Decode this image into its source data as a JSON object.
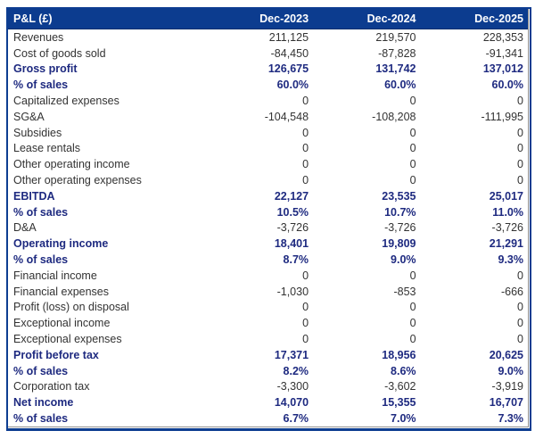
{
  "theme": {
    "header_background": "#0c3c8f",
    "header_text": "#ffffff",
    "emphasis_text": "#1e2a80",
    "body_text": "#333333",
    "outer_border": "#0d3d91",
    "inner_gridline": "#8f8f8f",
    "background": "#ffffff"
  },
  "table": {
    "columns": [
      "P&L (£)",
      "Dec-2023",
      "Dec-2024",
      "Dec-2025"
    ],
    "rows": [
      {
        "label": "Revenues",
        "values": [
          "211,125",
          "219,570",
          "228,353"
        ],
        "bold": false
      },
      {
        "label": "Cost of goods sold",
        "values": [
          "-84,450",
          "-87,828",
          "-91,341"
        ],
        "bold": false
      },
      {
        "label": "Gross profit",
        "values": [
          "126,675",
          "131,742",
          "137,012"
        ],
        "bold": true
      },
      {
        "label": "% of sales",
        "values": [
          "60.0%",
          "60.0%",
          "60.0%"
        ],
        "bold": true
      },
      {
        "label": "Capitalized expenses",
        "values": [
          "0",
          "0",
          "0"
        ],
        "bold": false
      },
      {
        "label": "SG&A",
        "values": [
          "-104,548",
          "-108,208",
          "-111,995"
        ],
        "bold": false
      },
      {
        "label": "Subsidies",
        "values": [
          "0",
          "0",
          "0"
        ],
        "bold": false
      },
      {
        "label": "Lease rentals",
        "values": [
          "0",
          "0",
          "0"
        ],
        "bold": false
      },
      {
        "label": "Other operating income",
        "values": [
          "0",
          "0",
          "0"
        ],
        "bold": false
      },
      {
        "label": "Other operating expenses",
        "values": [
          "0",
          "0",
          "0"
        ],
        "bold": false
      },
      {
        "label": "EBITDA",
        "values": [
          "22,127",
          "23,535",
          "25,017"
        ],
        "bold": true
      },
      {
        "label": "% of sales",
        "values": [
          "10.5%",
          "10.7%",
          "11.0%"
        ],
        "bold": true
      },
      {
        "label": "D&A",
        "values": [
          "-3,726",
          "-3,726",
          "-3,726"
        ],
        "bold": false
      },
      {
        "label": "Operating income",
        "values": [
          "18,401",
          "19,809",
          "21,291"
        ],
        "bold": true
      },
      {
        "label": "% of sales",
        "values": [
          "8.7%",
          "9.0%",
          "9.3%"
        ],
        "bold": true
      },
      {
        "label": "Financial income",
        "values": [
          "0",
          "0",
          "0"
        ],
        "bold": false
      },
      {
        "label": "Financial expenses",
        "values": [
          "-1,030",
          "-853",
          "-666"
        ],
        "bold": false
      },
      {
        "label": "Profit (loss) on disposal",
        "values": [
          "0",
          "0",
          "0"
        ],
        "bold": false
      },
      {
        "label": "Exceptional income",
        "values": [
          "0",
          "0",
          "0"
        ],
        "bold": false
      },
      {
        "label": "Exceptional expenses",
        "values": [
          "0",
          "0",
          "0"
        ],
        "bold": false
      },
      {
        "label": "Profit before tax",
        "values": [
          "17,371",
          "18,956",
          "20,625"
        ],
        "bold": true
      },
      {
        "label": "% of sales",
        "values": [
          "8.2%",
          "8.6%",
          "9.0%"
        ],
        "bold": true
      },
      {
        "label": "Corporation tax",
        "values": [
          "-3,300",
          "-3,602",
          "-3,919"
        ],
        "bold": false
      },
      {
        "label": "Net income",
        "values": [
          "14,070",
          "15,355",
          "16,707"
        ],
        "bold": true
      },
      {
        "label": "% of sales",
        "values": [
          "6.7%",
          "7.0%",
          "7.3%"
        ],
        "bold": true
      }
    ]
  }
}
